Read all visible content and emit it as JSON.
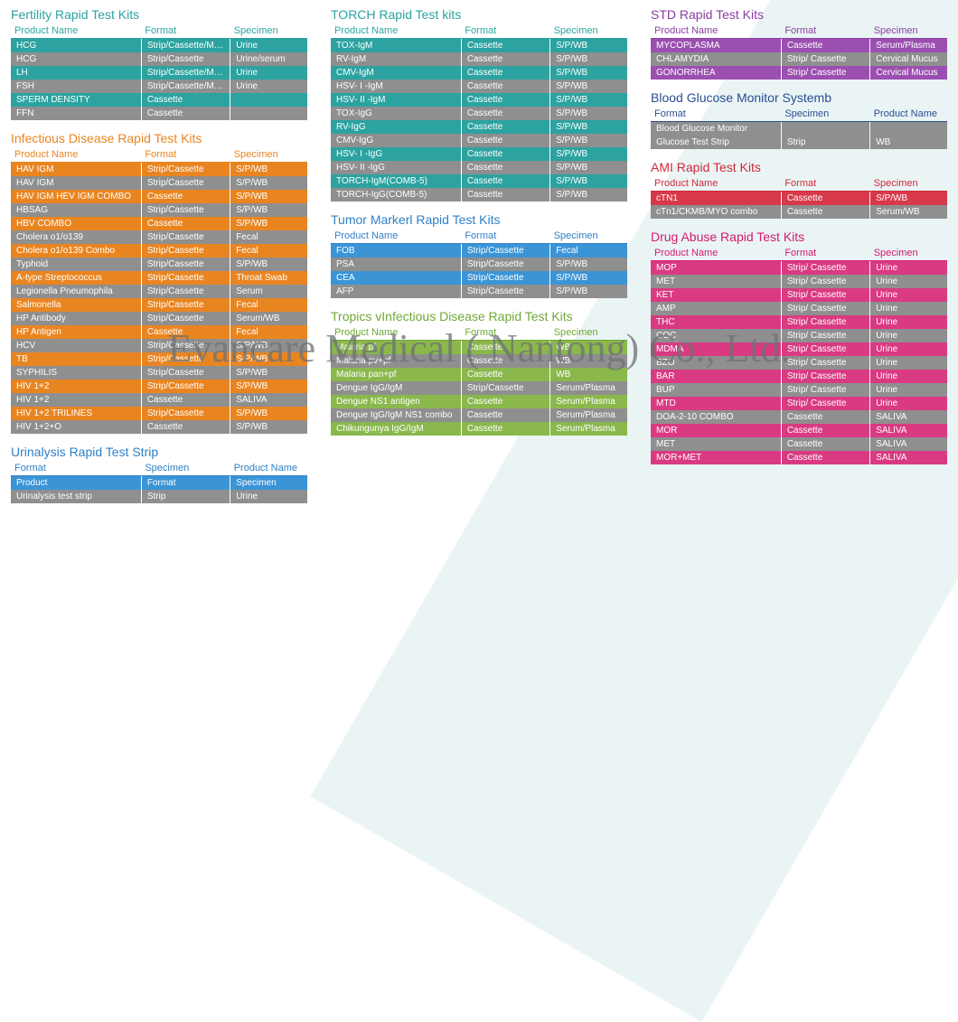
{
  "watermark": "Evancare Medical ( Nantong) Co., Ltd.",
  "col_widths": {
    "c1": "44%",
    "c2": "30%",
    "c3": "26%"
  },
  "columns": [
    [
      {
        "id": "fertility",
        "theme": "teal",
        "title": "Fertility Rapid Test Kits",
        "headers": [
          "Product Name",
          "Format",
          "Specimen"
        ],
        "rows": [
          [
            "HCG",
            "Strip/Cassette/Midstream",
            "Urine"
          ],
          [
            "HCG",
            "Strip/Cassette",
            "Urine/serum"
          ],
          [
            "LH",
            "Strip/Cassette/Midstream",
            "Urine"
          ],
          [
            "FSH",
            "Strip/Cassette/Midstream",
            "Urine"
          ],
          [
            "SPERM DENSITY",
            "Cassette",
            ""
          ],
          [
            "FFN",
            "Cassette",
            ""
          ]
        ]
      },
      {
        "id": "infectious",
        "theme": "orange",
        "title": "Infectious Disease Rapid Test Kits",
        "headers": [
          "Product Name",
          "Format",
          "Specimen"
        ],
        "rows": [
          [
            "HAV IGM",
            "Strip/Cassette",
            "S/P/WB"
          ],
          [
            "HAV IGM",
            "Strip/Cassette",
            "S/P/WB"
          ],
          [
            "HAV IGM HEV IGM COMBO",
            "Cassette",
            "S/P/WB"
          ],
          [
            "HBSAG",
            "Strip/Cassette",
            "S/P/WB"
          ],
          [
            "HBV COMBO",
            "Cassette",
            "S/P/WB"
          ],
          [
            "Cholera o1/o139",
            "Strip/Cassette",
            "Fecal"
          ],
          [
            "Cholera o1/o139 Combo",
            "Strip/Cassette",
            "Fecal"
          ],
          [
            "Typhoid",
            "Strip/Cassette",
            "S/P/WB"
          ],
          [
            "A-type Streptococcus",
            "Strip/Cassette",
            "Throat Swab"
          ],
          [
            "Legionella Pneumophila",
            "Strip/Cassette",
            "Serum"
          ],
          [
            "Salmonella",
            "Strip/Cassette",
            "Fecal"
          ],
          [
            "HP Antibody",
            "Strip/Cassette",
            "Serum/WB"
          ],
          [
            "HP Antigen",
            "Cassette",
            "Fecal"
          ],
          [
            "HCV",
            "Strip/Cassette",
            "S/P/WB"
          ],
          [
            "TB",
            "Strip/Cassette",
            "S/P/WB"
          ],
          [
            "SYPHILIS",
            "Strip/Cassette",
            "S/P/WB"
          ],
          [
            "HIV 1+2",
            "Strip/Cassette",
            "S/P/WB"
          ],
          [
            "HIV 1+2",
            "Cassette",
            "SALIVA"
          ],
          [
            "HIV 1+2 TRILINES",
            "Strip/Cassette",
            "S/P/WB"
          ],
          [
            "HIV 1+2+O",
            "Cassette",
            "S/P/WB"
          ]
        ]
      },
      {
        "id": "urinalysis",
        "theme": "blue",
        "title": "Urinalysis Rapid Test Strip",
        "headers": [
          "Format",
          "Specimen",
          "Product Name"
        ],
        "rows": [
          [
            "Product",
            "Format",
            "Specimen"
          ],
          [
            "Urinalysis test strip",
            "Strip",
            "Urine"
          ]
        ]
      }
    ],
    [
      {
        "id": "torch",
        "theme": "teal",
        "title": "TORCH Rapid Test kits",
        "headers": [
          "Product Name",
          "Format",
          "Specimen"
        ],
        "rows": [
          [
            "TOX-IgM",
            "Cassette",
            "S/P/WB"
          ],
          [
            "RV-IgM",
            "Cassette",
            "S/P/WB"
          ],
          [
            "CMV-IgM",
            "Cassette",
            "S/P/WB"
          ],
          [
            "HSV- I -IgM",
            "Cassette",
            "S/P/WB"
          ],
          [
            "HSV- II -IgM",
            "Cassette",
            "S/P/WB"
          ],
          [
            "TOX-IgG",
            "Cassette",
            "S/P/WB"
          ],
          [
            "RV-IgG",
            "Cassette",
            "S/P/WB"
          ],
          [
            "CMV-IgG",
            "Cassette",
            "S/P/WB"
          ],
          [
            "HSV- I -IgG",
            "Cassette",
            "S/P/WB"
          ],
          [
            "HSV- II -IgG",
            "Cassette",
            "S/P/WB"
          ],
          [
            "TORCH-IgM(COMB-5)",
            "Cassette",
            "S/P/WB"
          ],
          [
            "TORCH-IgG(COMB-5)",
            "Cassette",
            "S/P/WB"
          ]
        ]
      },
      {
        "id": "tumor",
        "theme": "blue",
        "title": "Tumor Markerl Rapid Test Kits",
        "headers": [
          "Product Name",
          "Format",
          "Specimen"
        ],
        "rows": [
          [
            "FOB",
            "Strip/Cassette",
            "Fecal"
          ],
          [
            "PSA",
            "Strip/Cassette",
            "S/P/WB"
          ],
          [
            "CEA",
            "Strip/Cassette",
            "S/P/WB"
          ],
          [
            "AFP",
            "Strip/Cassette",
            "S/P/WB"
          ]
        ]
      },
      {
        "id": "tropics",
        "theme": "green",
        "title": "Tropics vInfectious Disease Rapid Test Kits",
        "headers": [
          "Product Name",
          "Format",
          "Specimen"
        ],
        "rows": [
          [
            "Malaria pf",
            "Cassette",
            "WB"
          ],
          [
            "Malaria pv+pf",
            "Cassette",
            "WB"
          ],
          [
            "Malaria pan+pf",
            "Cassette",
            "WB"
          ],
          [
            "Dengue IgG/IgM",
            "Strip/Cassette",
            "Serum/Plasma"
          ],
          [
            "Dengue NS1 antigen",
            "Cassette",
            "Serum/Plasma"
          ],
          [
            "Dengue IgG/IgM NS1 combo",
            "Cassette",
            "Serum/Plasma"
          ],
          [
            "Chikungunya IgG/IgM",
            "Cassette",
            "Serum/Plasma"
          ]
        ]
      }
    ],
    [
      {
        "id": "std",
        "theme": "purple",
        "title": "STD Rapid Test Kits",
        "headers": [
          "Product Name",
          "Format",
          "Specimen"
        ],
        "rows": [
          [
            "MYCOPLASMA",
            "Cassette",
            "Serum/Plasma"
          ],
          [
            "CHLAMYDIA",
            "Strip/ Cassette",
            "Cervical Mucus"
          ],
          [
            "GONORRHEA",
            "Strip/ Cassette",
            "Cervical Mucus"
          ]
        ]
      },
      {
        "id": "glucose",
        "theme": "navy",
        "title": "Blood Glucose Monitor Systemb",
        "headers": [
          "Format",
          "Specimen",
          "Product Name"
        ],
        "rows": [
          [
            "Blood Glucose Monitor",
            "",
            ""
          ],
          [
            "Glucose Test Strip",
            "Strip",
            "WB"
          ]
        ],
        "no_alt": true
      },
      {
        "id": "ami",
        "theme": "red",
        "title": "AMI  Rapid Test Kits",
        "headers": [
          "Product Name",
          "Format",
          "Specimen"
        ],
        "rows": [
          [
            "cTN1",
            "Cassette",
            "S/P/WB"
          ],
          [
            "cTn1/CKMB/MYO combo",
            "Cassette",
            "Serum/WB"
          ]
        ]
      },
      {
        "id": "drug",
        "theme": "magenta",
        "title": "Drug Abuse Rapid Test Kits",
        "headers": [
          "Product Name",
          "Format",
          "Specimen"
        ],
        "rows": [
          [
            "MOP",
            "Strip/ Cassette",
            "Urine"
          ],
          [
            "MET",
            "Strip/ Cassette",
            "Urine"
          ],
          [
            "KET",
            "Strip/ Cassette",
            "Urine"
          ],
          [
            "AMP",
            "Strip/ Cassette",
            "Urine"
          ],
          [
            "THC",
            "Strip/ Cassette",
            "Urine"
          ],
          [
            "COC",
            "Strip/ Cassette",
            "Urine"
          ],
          [
            "MDMA",
            "Strip/ Cassette",
            "Urine"
          ],
          [
            "BZO",
            "Strip/ Cassette",
            "Urine"
          ],
          [
            "BAR",
            "Strip/ Cassette",
            "Urine"
          ],
          [
            "BUP",
            "Strip/ Cassette",
            "Urine"
          ],
          [
            "MTD",
            "Strip/ Cassette",
            "Urine"
          ],
          [
            "DOA-2-10 COMBO",
            "Cassette",
            "SALIVA"
          ],
          [
            "MOR",
            "Cassette",
            "SALIVA"
          ],
          [
            "MET",
            "Cassette",
            "SALIVA"
          ],
          [
            "MOR+MET",
            "Cassette",
            "SALIVA"
          ]
        ]
      }
    ]
  ]
}
